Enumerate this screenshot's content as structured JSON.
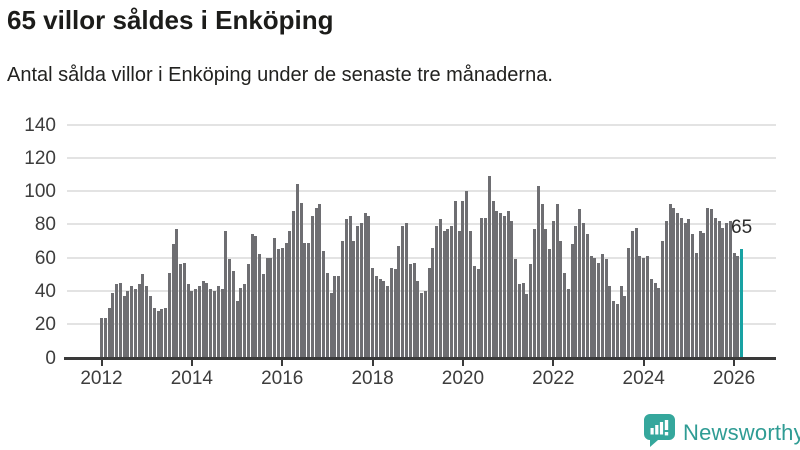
{
  "header": {
    "title": "65 villor såldes i Enköping",
    "subtitle": "Antal sålda villor i Enköping under de senaste tre månaderna."
  },
  "chart_data": {
    "type": "bar",
    "title": "65 villor såldes i Enköping",
    "subtitle": "Antal sålda villor i Enköping under de senaste tre månaderna.",
    "frequency": "monthly",
    "x_start_year": 2012,
    "values": [
      24,
      24,
      30,
      39,
      44,
      45,
      37,
      40,
      43,
      41,
      44,
      50,
      43,
      37,
      30,
      28,
      29,
      30,
      51,
      68,
      77,
      56,
      57,
      44,
      40,
      41,
      43,
      46,
      45,
      41,
      40,
      43,
      41,
      76,
      59,
      52,
      34,
      42,
      44,
      56,
      74,
      73,
      62,
      50,
      60,
      60,
      72,
      65,
      66,
      69,
      76,
      88,
      104,
      93,
      69,
      69,
      85,
      90,
      92,
      64,
      51,
      39,
      49,
      49,
      70,
      83,
      85,
      70,
      79,
      81,
      87,
      85,
      54,
      49,
      47,
      46,
      43,
      54,
      53,
      67,
      79,
      81,
      56,
      57,
      46,
      39,
      40,
      54,
      66,
      79,
      83,
      76,
      77,
      79,
      94,
      76,
      94,
      100,
      76,
      55,
      53,
      84,
      84,
      109,
      94,
      88,
      87,
      85,
      88,
      82,
      59,
      44,
      45,
      38,
      56,
      77,
      103,
      92,
      77,
      65,
      82,
      92,
      70,
      51,
      41,
      68,
      79,
      89,
      81,
      74,
      61,
      60,
      57,
      62,
      59,
      43,
      34,
      32,
      43,
      37,
      66,
      76,
      78,
      61,
      60,
      61,
      47,
      45,
      42,
      70,
      82,
      92,
      90,
      87,
      84,
      81,
      83,
      74,
      63,
      76,
      75,
      90,
      89,
      84,
      82,
      78,
      81,
      82,
      63,
      61,
      65
    ],
    "highlight_last": true,
    "last_value": 65,
    "last_value_label": "65",
    "ylim": [
      0,
      140
    ],
    "yticks": [
      0,
      20,
      40,
      60,
      80,
      100,
      120,
      140
    ],
    "xtick_years": [
      2012,
      2014,
      2016,
      2018,
      2020,
      2022,
      2024,
      2026
    ],
    "grid": true,
    "legend": "none",
    "bar_color": "#6e6e72",
    "highlight_color": "#18a2a3",
    "gridline_color": "#e3e3e3",
    "axis_color": "#3a3a3a"
  },
  "footer": {
    "brand": "Newsworthy",
    "brand_color": "#2f9c94",
    "logo_icon": "bar-chart-speech-bubble-icon"
  }
}
